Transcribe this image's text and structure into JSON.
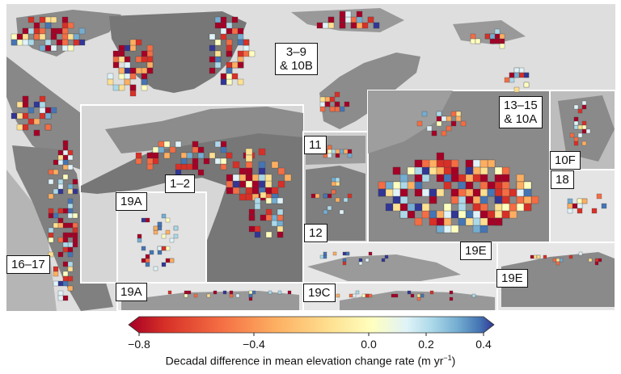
{
  "region_labels": {
    "r3_9_line1": "3–9",
    "r3_9_line2": "& 10B",
    "r13_15_line1": "13–15",
    "r13_15_line2": "& 10A",
    "r1_2": "1–2",
    "r11": "11",
    "r12": "12",
    "r10F": "10F",
    "r18": "18",
    "r19A_top": "19A",
    "r19A_bottom": "19A",
    "r16_17": "16–17",
    "r19E_left": "19E",
    "r19E_right": "19E",
    "r19C": "19C"
  },
  "colorbar": {
    "title": "Decadal difference in mean elevation change rate (m yr",
    "title_sup": "−1",
    "title_end": ")",
    "ticks": [
      "−0.8",
      "−0.4",
      "0.0",
      "0.2",
      "0.4"
    ],
    "tick_values": [
      -0.8,
      -0.4,
      0.0,
      0.2,
      0.4
    ],
    "range": [
      -0.8,
      0.4
    ],
    "colors": [
      "#a50026",
      "#d73027",
      "#f46d43",
      "#fdae61",
      "#fee090",
      "#ffffbf",
      "#e0f3f8",
      "#abd9e9",
      "#74add1",
      "#4575b4",
      "#313695"
    ]
  },
  "colors": {
    "ocean": "#dcdcdc",
    "land": "#7a7a7a",
    "inset_border": "#ffffff"
  }
}
